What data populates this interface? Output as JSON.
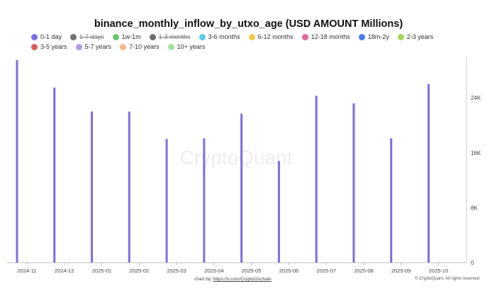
{
  "legend": [
    {
      "label": "0-1 day",
      "color": "#7b6fe0",
      "active": true
    },
    {
      "label": "1-7 days",
      "color": "#6e6e73",
      "active": false
    },
    {
      "label": "1w-1m",
      "color": "#6cc46a",
      "active": true
    },
    {
      "label": "1-3 months",
      "color": "#6e6e73",
      "active": false
    },
    {
      "label": "3-6 months",
      "color": "#5ec8e8",
      "active": true
    },
    {
      "label": "6-12 months",
      "color": "#f2c54b",
      "active": true
    },
    {
      "label": "12-18 months",
      "color": "#e0689a",
      "active": true
    },
    {
      "label": "18m-2y",
      "color": "#4b7bec",
      "active": true
    },
    {
      "label": "2-3 years",
      "color": "#a6d65a",
      "active": true
    },
    {
      "label": "3-5 years",
      "color": "#e05a5a",
      "active": true
    },
    {
      "label": "5-7 years",
      "color": "#b39ddb",
      "active": true
    },
    {
      "label": "7-10 years",
      "color": "#f5b98a",
      "active": true
    },
    {
      "label": "10+ years",
      "color": "#a5e0a0",
      "active": true
    }
  ],
  "footer": {
    "credit_prefix": "chart by: ",
    "credit_link": "https://x.com/CryptoOnchain",
    "copyright": "© CryptoQuant. All rights reserved"
  },
  "watermark": "CryptoQuant",
  "chart_data": {
    "type": "bar",
    "title": "binance_monthly_inflow_by_utxo_age (USD AMOUNT Millions)",
    "categories": [
      "2024-11",
      "2024-12",
      "2025-01",
      "2025-02",
      "2025-03",
      "2025-04",
      "2025-05",
      "2025-06",
      "2025-07",
      "2025-08",
      "2025-09",
      "2025-10"
    ],
    "series": [
      {
        "name": "0-1 day",
        "color": "#7b6fe0",
        "values": [
          29500,
          25500,
          22000,
          22000,
          18000,
          18100,
          21700,
          14800,
          24300,
          23200,
          18100,
          26000
        ]
      }
    ],
    "y_axis": {
      "side": "right",
      "ticks": [
        0,
        8000,
        16000,
        24000
      ],
      "tick_labels": [
        "0",
        "8K",
        "16K",
        "24K"
      ],
      "ylim": [
        0,
        30000
      ]
    },
    "grid": false,
    "legend_position": "top"
  }
}
